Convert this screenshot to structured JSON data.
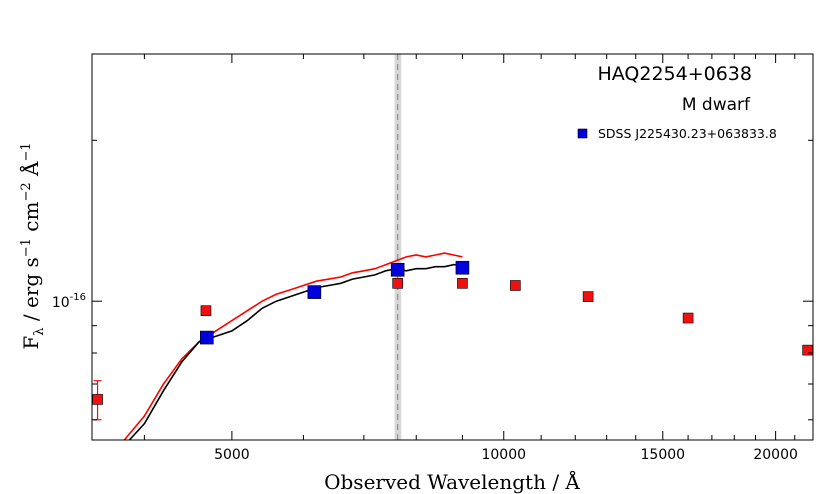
{
  "chart_data": {
    "type": "scatter",
    "title": "HAQ2254+0638",
    "subtitle": "M dwarf",
    "xlabel": "Observed Wavelength / Å",
    "ylabel_text": "F",
    "ylabel_sub": "λ",
    "ylabel_units": " / erg s",
    "ylabel_units2": " cm",
    "ylabel_units3": " Å",
    "ylabel_sup1": "−1",
    "ylabel_sup2": "−2",
    "ylabel_sup3": "−1",
    "x_scale": "log",
    "y_scale": "log",
    "xlim": [
      3500,
      22000
    ],
    "ylim": [
      5.5e-17,
      2.9e-16
    ],
    "x_ticks": [
      5000,
      10000,
      15000,
      20000
    ],
    "x_tick_labels": [
      "5000",
      "10000",
      "15000",
      "20000"
    ],
    "y_tick_label_base": "10",
    "y_tick_label_exp": "-16",
    "y_tick_value": 1e-16,
    "legend": {
      "label": "SDSS J225430.23+063833.8",
      "placement": "top-right",
      "color": "#0000dd"
    },
    "shaded_band": {
      "x": [
        7570,
        7700
      ],
      "center": 7630,
      "color": "#aaaaaa"
    },
    "colors": {
      "photometry": "#ee1111",
      "sdss": "#0000dd",
      "red_spectrum": "#ff0000",
      "black_spectrum": "#000000"
    },
    "series": [
      {
        "kind": "photometry",
        "points": [
          {
            "x": 3550,
            "y": 6.55e-17,
            "yerr": [
              6e-17,
              7.1e-17
            ]
          },
          {
            "x": 4680,
            "y": 9.6e-17
          },
          {
            "x": 7630,
            "y": 1.08e-16
          },
          {
            "x": 9000,
            "y": 1.08e-16
          },
          {
            "x": 10300,
            "y": 1.07e-16
          },
          {
            "x": 12400,
            "y": 1.02e-16
          },
          {
            "x": 16000,
            "y": 9.3e-17
          },
          {
            "x": 21700,
            "y": 8.1e-17
          }
        ]
      },
      {
        "name": "SDSS J225430.23+063833.8",
        "kind": "sdss",
        "points": [
          {
            "x": 4690,
            "y": 8.55e-17
          },
          {
            "x": 6170,
            "y": 1.04e-16
          },
          {
            "x": 7630,
            "y": 1.145e-16
          },
          {
            "x": 9000,
            "y": 1.155e-16
          }
        ]
      },
      {
        "kind": "red_spectrum",
        "points": [
          [
            3800,
            5.5e-17
          ],
          [
            4000,
            6.1e-17
          ],
          [
            4200,
            7e-17
          ],
          [
            4400,
            7.8e-17
          ],
          [
            4600,
            8.4e-17
          ],
          [
            4800,
            8.8e-17
          ],
          [
            5000,
            9.2e-17
          ],
          [
            5200,
            9.6e-17
          ],
          [
            5400,
            1e-16
          ],
          [
            5600,
            1.03e-16
          ],
          [
            5800,
            1.05e-16
          ],
          [
            6000,
            1.07e-16
          ],
          [
            6200,
            1.09e-16
          ],
          [
            6400,
            1.1e-16
          ],
          [
            6600,
            1.11e-16
          ],
          [
            6800,
            1.13e-16
          ],
          [
            7000,
            1.14e-16
          ],
          [
            7200,
            1.15e-16
          ],
          [
            7400,
            1.17e-16
          ],
          [
            7600,
            1.19e-16
          ],
          [
            7800,
            1.21e-16
          ],
          [
            8000,
            1.22e-16
          ],
          [
            8200,
            1.21e-16
          ],
          [
            8400,
            1.22e-16
          ],
          [
            8600,
            1.23e-16
          ],
          [
            8800,
            1.22e-16
          ],
          [
            9000,
            1.21e-16
          ]
        ]
      },
      {
        "kind": "black_spectrum",
        "points": [
          [
            3850,
            5.5e-17
          ],
          [
            4000,
            5.9e-17
          ],
          [
            4200,
            6.8e-17
          ],
          [
            4400,
            7.7e-17
          ],
          [
            4600,
            8.4e-17
          ],
          [
            4800,
            8.6e-17
          ],
          [
            5000,
            8.8e-17
          ],
          [
            5200,
            9.2e-17
          ],
          [
            5400,
            9.7e-17
          ],
          [
            5600,
            1e-16
          ],
          [
            5800,
            1.02e-16
          ],
          [
            6000,
            1.04e-16
          ],
          [
            6200,
            1.06e-16
          ],
          [
            6400,
            1.07e-16
          ],
          [
            6600,
            1.08e-16
          ],
          [
            6800,
            1.1e-16
          ],
          [
            7000,
            1.11e-16
          ],
          [
            7200,
            1.12e-16
          ],
          [
            7400,
            1.14e-16
          ],
          [
            7600,
            1.15e-16
          ],
          [
            7800,
            1.14e-16
          ],
          [
            8000,
            1.15e-16
          ],
          [
            8200,
            1.15e-16
          ],
          [
            8400,
            1.16e-16
          ],
          [
            8600,
            1.16e-16
          ],
          [
            8800,
            1.17e-16
          ],
          [
            9000,
            1.17e-16
          ]
        ]
      }
    ]
  }
}
